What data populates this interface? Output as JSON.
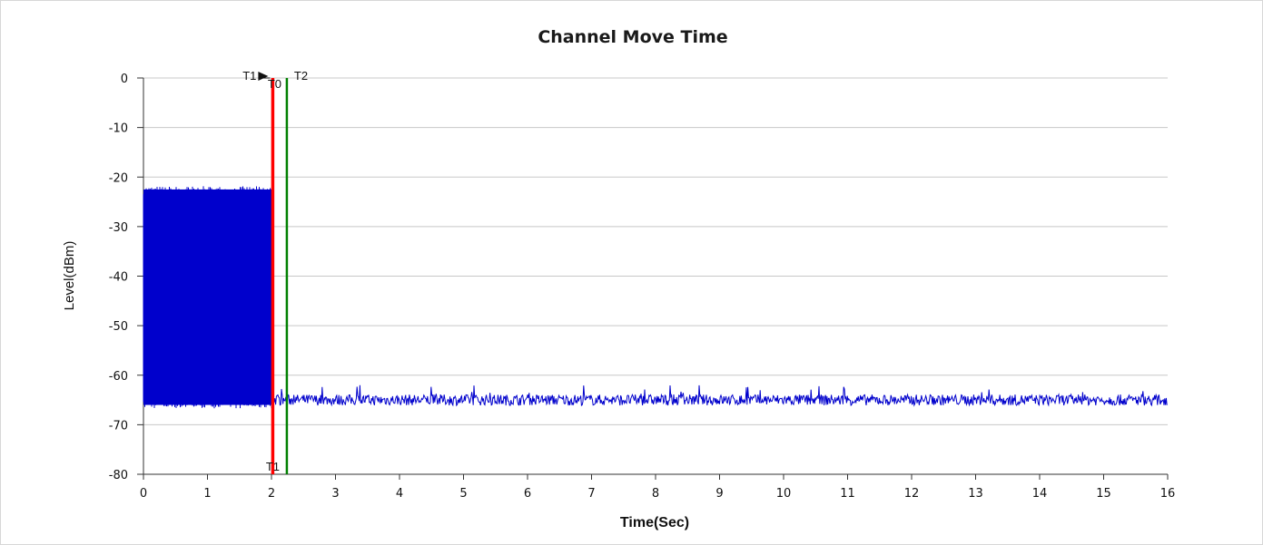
{
  "chart_data": {
    "type": "line",
    "title": "Channel Move Time",
    "xlabel": "Time(Sec)",
    "ylabel": "Level(dBm)",
    "xlim": [
      0,
      16
    ],
    "ylim": [
      -80,
      0
    ],
    "x_ticks": [
      0,
      1,
      2,
      3,
      4,
      5,
      6,
      7,
      8,
      9,
      10,
      11,
      12,
      13,
      14,
      15,
      16
    ],
    "y_ticks": [
      0,
      -10,
      -20,
      -30,
      -40,
      -50,
      -60,
      -70,
      -80
    ],
    "grid": "horizontal",
    "legend": "none",
    "series": [
      {
        "color": "#0000cc",
        "segments": [
          {
            "x_start": 0,
            "x_end": 2.02,
            "level_max": -22.5,
            "level_min": -66,
            "pattern": "dense burst transmission"
          },
          {
            "x_start": 2.02,
            "x_end": 16,
            "level_mean": -65,
            "level_range": [
              -66.5,
              -62
            ],
            "pattern": "noise floor"
          }
        ]
      }
    ],
    "markers": [
      {
        "label": "T0",
        "x": 2.02,
        "color": "#ff0000",
        "type": "vertical-line"
      },
      {
        "label": "T1",
        "x": 2.02,
        "type": "text-label"
      },
      {
        "label": "T2",
        "x": 2.24,
        "color": "#008000",
        "type": "vertical-line"
      }
    ]
  }
}
